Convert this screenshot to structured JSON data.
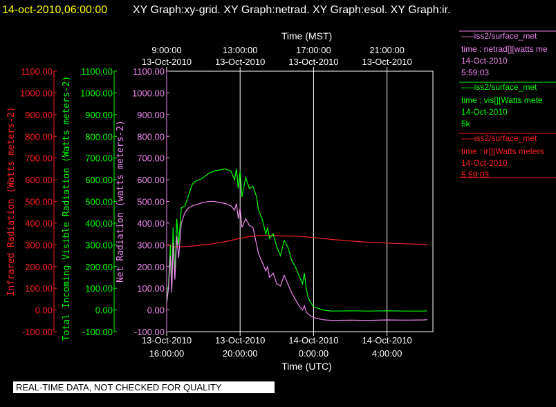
{
  "header": {
    "datetime": "14-oct-2010,06:00:00",
    "graphs": "XY Graph:xy-grid.  XY Graph:netrad.  XY Graph:esol.  XY Graph:ir."
  },
  "colors": {
    "ir": "#ff2020",
    "vis": "#00ff00",
    "net": "#ee88ee",
    "datetime": "#ffff00",
    "axis": "#ffffff"
  },
  "legend": [
    {
      "name": "iss2/surface_met",
      "var": "time : netrad[][watts me",
      "date": "14-Oct-2010",
      "time": "5:59:03",
      "color": "#ee88ee"
    },
    {
      "name": "iss2/surface_met",
      "var": "time : vis[][Watts mete",
      "date": "14-Oct-2010",
      "time": "5k",
      "color": "#00ff00"
    },
    {
      "name": "iss2/surface_met",
      "var": "time : ir[][Watts meters",
      "date": "14-Oct-2010",
      "time": "5:59:03",
      "color": "#ff2020"
    }
  ],
  "notice": "REAL-TIME DATA, NOT CHECKED FOR QUALITY",
  "chart_data": {
    "type": "line",
    "top_axis_title": "Time (MST)",
    "bottom_axis_title": "Time (UTC)",
    "xlim": [
      0,
      14.5
    ],
    "bottom_ticks": [
      {
        "h": 0,
        "date": "13-Oct-2010",
        "time": "16:00:00"
      },
      {
        "h": 4,
        "date": "13-Oct-2010",
        "time": "20:00:00"
      },
      {
        "h": 8,
        "date": "14-Oct-2010",
        "time": "0:00:00"
      },
      {
        "h": 12,
        "date": "14-Oct-2010",
        "time": "4:00:00"
      }
    ],
    "top_ticks": [
      {
        "h": 0,
        "time": "9:00:00",
        "date": "13-Oct-2010"
      },
      {
        "h": 4,
        "time": "13:00:00",
        "date": "13-Oct-2010"
      },
      {
        "h": 8,
        "time": "17:00:00",
        "date": "13-Oct-2010"
      },
      {
        "h": 12,
        "time": "21:00:00",
        "date": "13-Oct-2010"
      }
    ],
    "ylim": [
      -100,
      1100
    ],
    "y_tick_labels": [
      "-100.00",
      "0.00",
      "100.00",
      "200.00",
      "300.00",
      "400.00",
      "500.00",
      "600.00",
      "700.00",
      "800.00",
      "900.00",
      "1000.00",
      "1100.00"
    ],
    "y_tick_labels_net": [
      "-100.00",
      "0.00",
      "100.00",
      "200.00",
      "300.00",
      "400.00",
      "500.00",
      "600.00",
      "700.00",
      "800.00",
      "900.00",
      "1000.00",
      "1100.00"
    ],
    "axes": [
      {
        "label": "Infrared Radiation (Watts meters-2)",
        "color": "#ff2020"
      },
      {
        "label": "Total Incoming Visible Radiation (Watts meters-2)",
        "color": "#00ff00"
      },
      {
        "label": "Net Radiation (watts meters-2)",
        "color": "#ee88ee"
      }
    ],
    "series": [
      {
        "name": "ir",
        "color": "#ff2020",
        "points": [
          [
            0,
            300
          ],
          [
            0.4,
            290
          ],
          [
            1,
            292
          ],
          [
            1.5,
            295
          ],
          [
            2,
            300
          ],
          [
            2.5,
            305
          ],
          [
            3,
            312
          ],
          [
            3.5,
            320
          ],
          [
            4,
            330
          ],
          [
            4.5,
            338
          ],
          [
            5,
            342
          ],
          [
            5.5,
            343
          ],
          [
            6,
            342
          ],
          [
            7,
            340
          ],
          [
            8,
            334
          ],
          [
            9,
            325
          ],
          [
            10,
            318
          ],
          [
            11,
            312
          ],
          [
            12,
            308
          ],
          [
            13,
            305
          ],
          [
            14,
            302
          ],
          [
            14.2,
            303
          ]
        ]
      },
      {
        "name": "vis",
        "color": "#00ff00",
        "points": [
          [
            0,
            40
          ],
          [
            0.1,
            120
          ],
          [
            0.2,
            300
          ],
          [
            0.28,
            100
          ],
          [
            0.35,
            380
          ],
          [
            0.45,
            160
          ],
          [
            0.55,
            420
          ],
          [
            0.65,
            300
          ],
          [
            0.8,
            470
          ],
          [
            1,
            480
          ],
          [
            1.2,
            530
          ],
          [
            1.4,
            580
          ],
          [
            1.6,
            595
          ],
          [
            1.8,
            600
          ],
          [
            2,
            610
          ],
          [
            2.3,
            630
          ],
          [
            2.6,
            640
          ],
          [
            2.9,
            645
          ],
          [
            3.2,
            650
          ],
          [
            3.5,
            640
          ],
          [
            3.7,
            600
          ],
          [
            3.8,
            650
          ],
          [
            3.9,
            560
          ],
          [
            4.0,
            640
          ],
          [
            4.1,
            520
          ],
          [
            4.3,
            610
          ],
          [
            4.5,
            560
          ],
          [
            4.7,
            570
          ],
          [
            4.9,
            520
          ],
          [
            5.0,
            460
          ],
          [
            5.2,
            420
          ],
          [
            5.4,
            350
          ],
          [
            5.5,
            380
          ],
          [
            5.6,
            330
          ],
          [
            5.8,
            350
          ],
          [
            6.0,
            290
          ],
          [
            6.2,
            250
          ],
          [
            6.4,
            320
          ],
          [
            6.6,
            290
          ],
          [
            6.8,
            230
          ],
          [
            7.0,
            200
          ],
          [
            7.2,
            160
          ],
          [
            7.4,
            120
          ],
          [
            7.5,
            170
          ],
          [
            7.6,
            100
          ],
          [
            7.7,
            60
          ],
          [
            7.8,
            40
          ],
          [
            8,
            15
          ],
          [
            8.5,
            0
          ],
          [
            9,
            -5
          ],
          [
            10,
            -4
          ],
          [
            11,
            -5
          ],
          [
            12,
            -4
          ],
          [
            13,
            -5
          ],
          [
            14,
            -5
          ],
          [
            14.2,
            -4
          ]
        ]
      },
      {
        "name": "net",
        "color": "#ee88ee",
        "points": [
          [
            0,
            30
          ],
          [
            0.1,
            100
          ],
          [
            0.2,
            250
          ],
          [
            0.28,
            80
          ],
          [
            0.35,
            310
          ],
          [
            0.45,
            140
          ],
          [
            0.55,
            340
          ],
          [
            0.65,
            240
          ],
          [
            0.8,
            400
          ],
          [
            1,
            450
          ],
          [
            1.2,
            470
          ],
          [
            1.4,
            480
          ],
          [
            1.6,
            485
          ],
          [
            1.8,
            490
          ],
          [
            2,
            495
          ],
          [
            2.3,
            500
          ],
          [
            2.6,
            500
          ],
          [
            2.9,
            495
          ],
          [
            3.2,
            490
          ],
          [
            3.5,
            480
          ],
          [
            3.7,
            460
          ],
          [
            3.8,
            490
          ],
          [
            3.9,
            420
          ],
          [
            4.0,
            470
          ],
          [
            4.1,
            380
          ],
          [
            4.3,
            420
          ],
          [
            4.5,
            390
          ],
          [
            4.7,
            380
          ],
          [
            4.9,
            300
          ],
          [
            5.0,
            260
          ],
          [
            5.2,
            220
          ],
          [
            5.4,
            180
          ],
          [
            5.5,
            200
          ],
          [
            5.6,
            150
          ],
          [
            5.8,
            170
          ],
          [
            6.0,
            120
          ],
          [
            6.2,
            110
          ],
          [
            6.4,
            160
          ],
          [
            6.6,
            120
          ],
          [
            6.8,
            80
          ],
          [
            7.0,
            50
          ],
          [
            7.2,
            20
          ],
          [
            7.4,
            0
          ],
          [
            7.5,
            20
          ],
          [
            7.6,
            -10
          ],
          [
            7.8,
            -25
          ],
          [
            8,
            -35
          ],
          [
            8.5,
            -45
          ],
          [
            9,
            -48
          ],
          [
            10,
            -47
          ],
          [
            11,
            -48
          ],
          [
            12,
            -46
          ],
          [
            13,
            -47
          ],
          [
            14,
            -46
          ],
          [
            14.2,
            -45
          ]
        ]
      }
    ]
  }
}
